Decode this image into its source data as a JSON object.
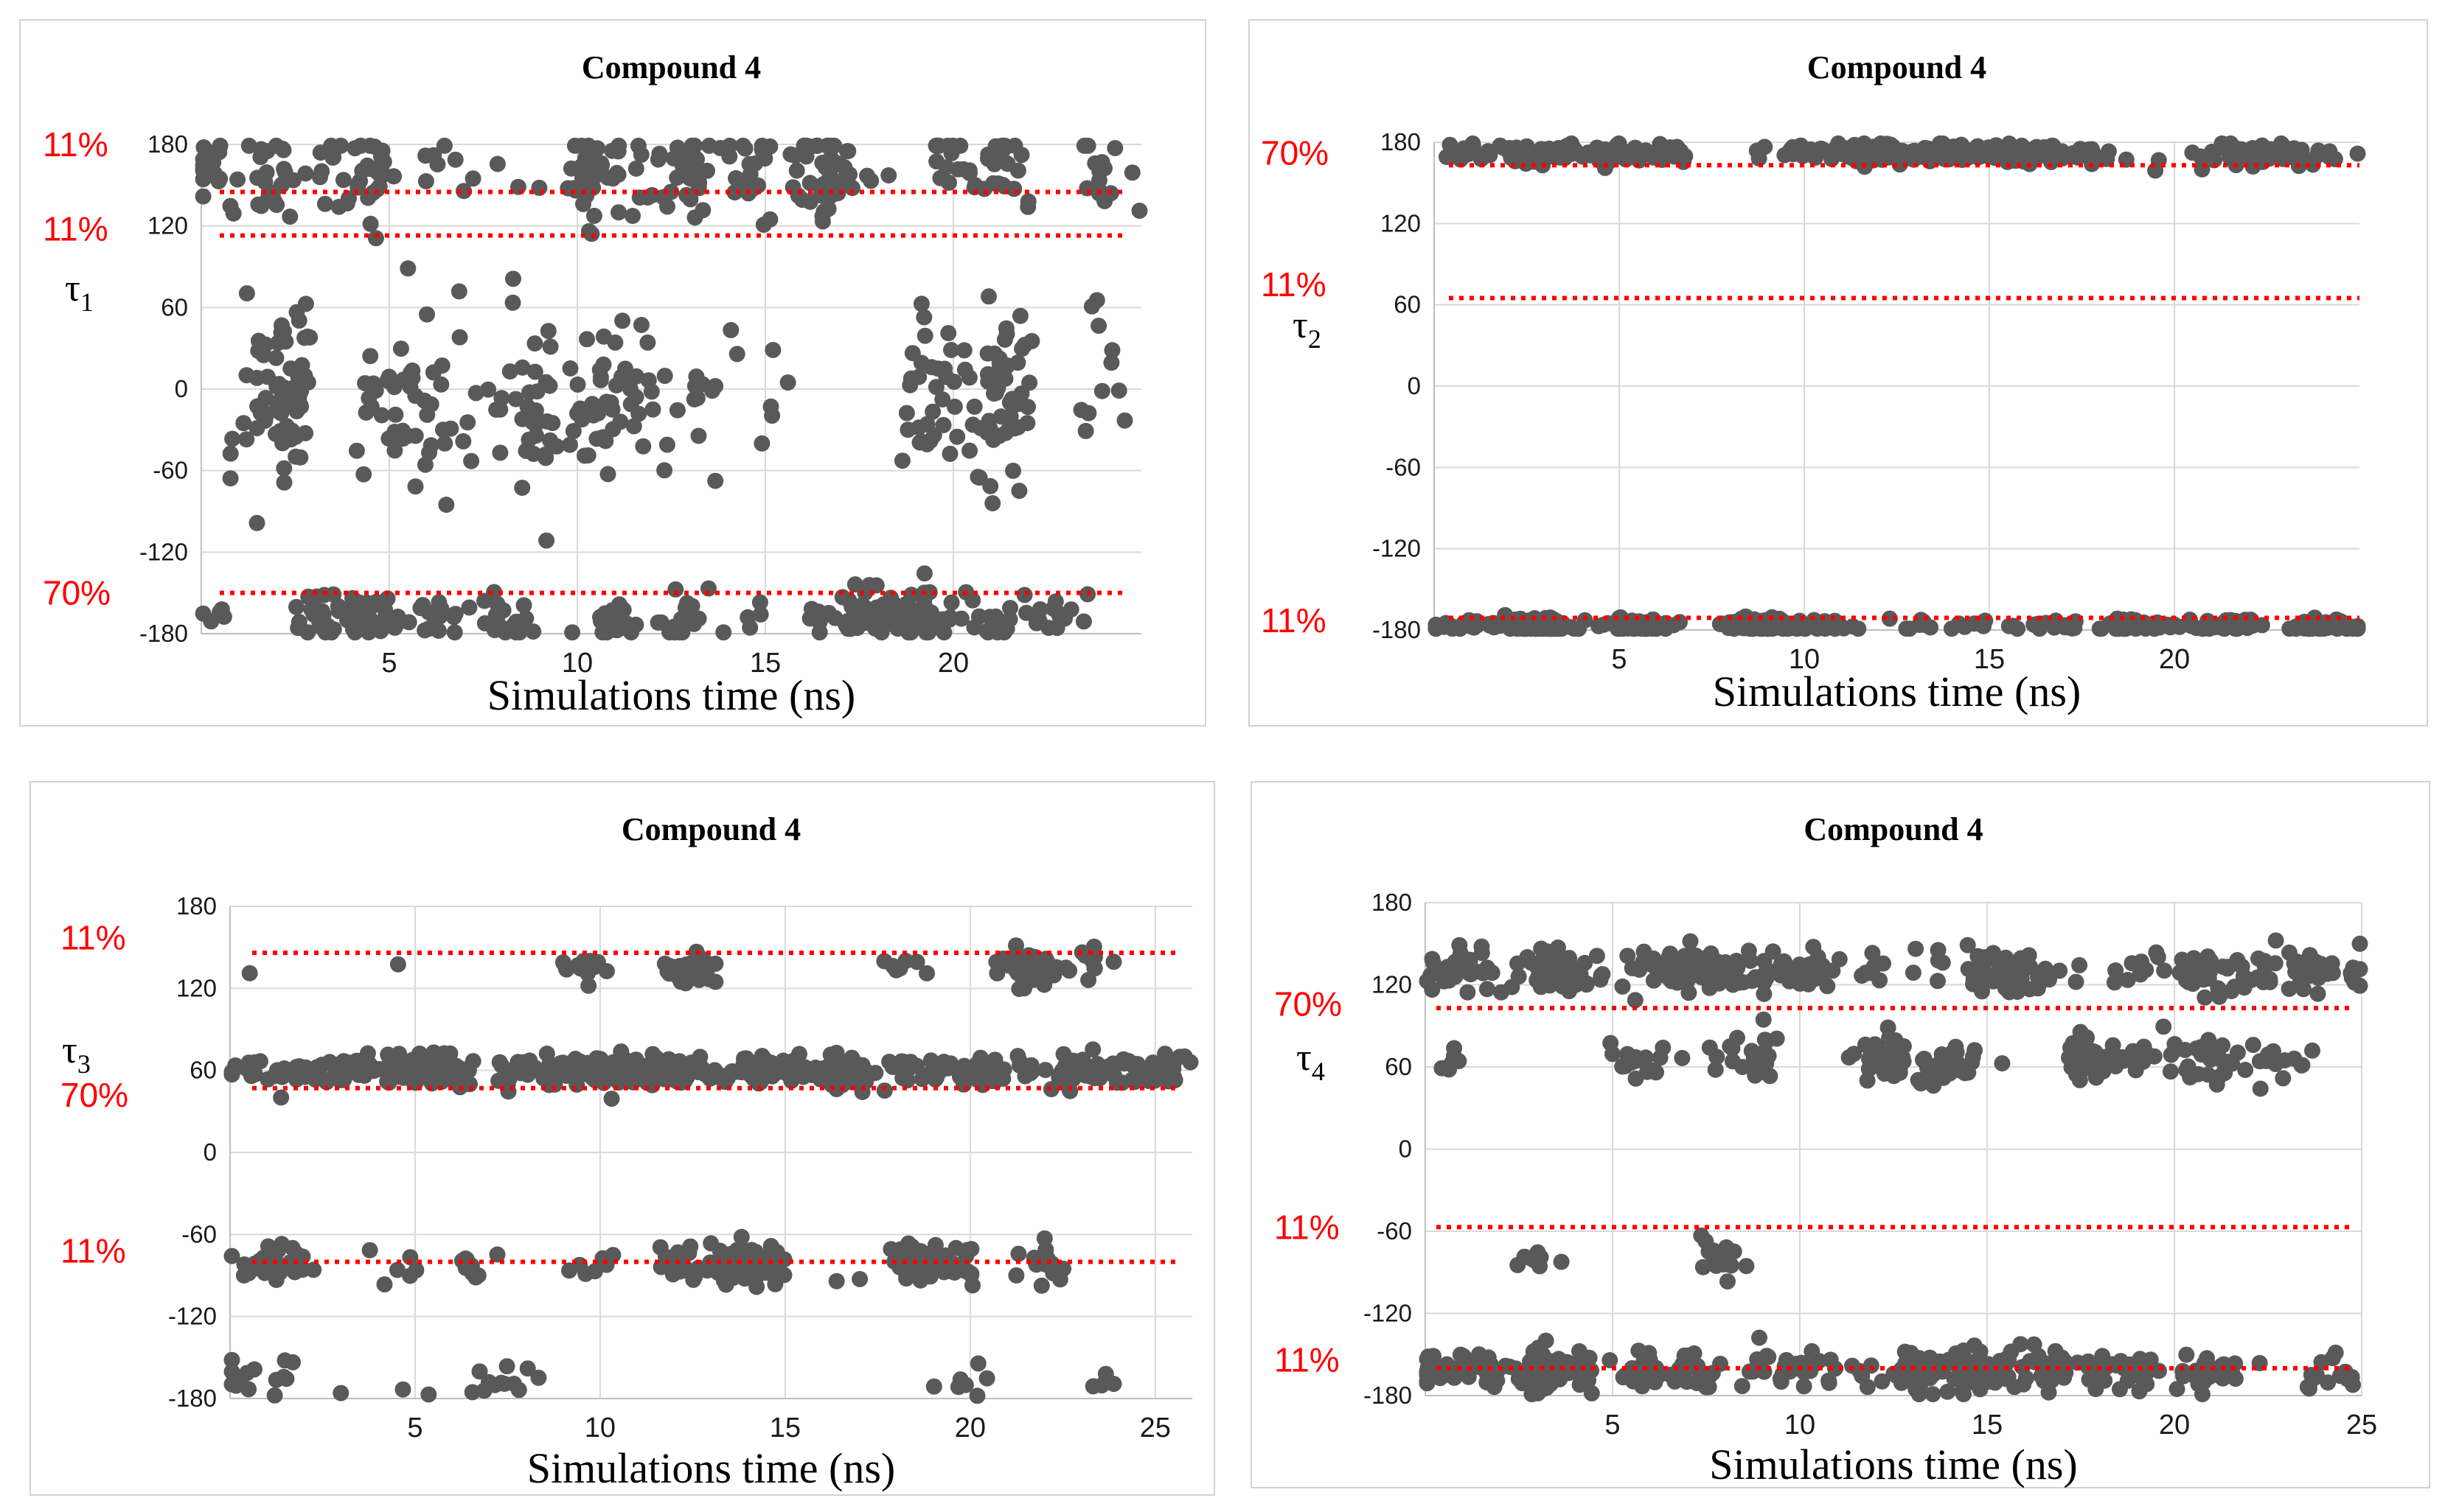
{
  "chart_data": [
    {
      "id": "tau1",
      "type": "scatter",
      "title": "Compound 4",
      "xlabel": "Simulations time (ns)",
      "ylabel": "τ",
      "ylabel_sub": "1",
      "xlim": [
        0,
        25
      ],
      "ylim": [
        -180,
        180
      ],
      "xticks": [
        5,
        10,
        15,
        20
      ],
      "yticks": [
        180,
        120,
        60,
        0,
        -60,
        -120,
        -180
      ],
      "clusters": [
        {
          "center": 160,
          "spread": 16,
          "count": 300,
          "coverage": [
            0,
            25
          ]
        },
        {
          "center": -5,
          "spread": 32,
          "count": 320,
          "coverage": [
            0,
            25
          ]
        },
        {
          "center": -168,
          "spread": 9,
          "count": 280,
          "coverage": [
            0,
            25
          ]
        }
      ],
      "reference_lines": [
        {
          "y": 145,
          "label": "11%",
          "label_y": 180
        },
        {
          "y": 113,
          "label": "11%",
          "label_y": 118
        },
        {
          "y": -150,
          "label": "70%",
          "label_y": -150
        }
      ]
    },
    {
      "id": "tau2",
      "type": "scatter",
      "title": "Compound 4",
      "xlabel": "Simulations time (ns)",
      "ylabel": "τ",
      "ylabel_sub": "2",
      "xlim": [
        0,
        25
      ],
      "ylim": [
        -180,
        180
      ],
      "xticks": [
        5,
        10,
        15,
        20
      ],
      "yticks": [
        180,
        120,
        60,
        0,
        -60,
        -120,
        -180
      ],
      "clusters": [
        {
          "center": 172,
          "spread": 4,
          "count": 420,
          "coverage": [
            0,
            25
          ]
        },
        {
          "center": -177,
          "spread": 3,
          "count": 420,
          "coverage": [
            0,
            25
          ]
        }
      ],
      "reference_lines": [
        {
          "y": 163,
          "label": "70%",
          "label_y": 172
        },
        {
          "y": 65,
          "label": "11%",
          "label_y": 75
        },
        {
          "y": -171,
          "label": "11%",
          "label_y": -173
        }
      ]
    },
    {
      "id": "tau3",
      "type": "scatter",
      "title": "Compound 4",
      "xlabel": "Simulations time (ns)",
      "ylabel": "τ",
      "ylabel_sub": "3",
      "xlim": [
        0,
        26
      ],
      "ylim": [
        -180,
        180
      ],
      "xticks": [
        5,
        10,
        15,
        20,
        25
      ],
      "yticks": [
        180,
        120,
        60,
        0,
        -60,
        -120,
        -180
      ],
      "clusters": [
        {
          "center": 135,
          "spread": 7,
          "count": 120,
          "coverage": [
            0,
            26
          ]
        },
        {
          "center": 60,
          "spread": 6,
          "count": 520,
          "coverage": [
            0,
            26
          ]
        },
        {
          "center": -82,
          "spread": 7,
          "count": 260,
          "coverage": [
            0,
            26
          ]
        },
        {
          "center": -168,
          "spread": 8,
          "count": 40,
          "coverage": [
            0,
            26
          ]
        }
      ],
      "reference_lines": [
        {
          "y": 146,
          "label": "11%",
          "label_y": 157
        },
        {
          "y": 47,
          "label": "70%",
          "label_y": 42
        },
        {
          "y": -80,
          "label": "11%",
          "label_y": -72
        }
      ]
    },
    {
      "id": "tau4",
      "type": "scatter",
      "title": "Compound 4",
      "xlabel": "Simulations time (ns)",
      "ylabel": "τ",
      "ylabel_sub": "4",
      "xlim": [
        0,
        25
      ],
      "ylim": [
        -180,
        180
      ],
      "xticks": [
        5,
        10,
        15,
        20,
        25
      ],
      "yticks": [
        180,
        120,
        60,
        0,
        -60,
        -120,
        -180
      ],
      "clusters": [
        {
          "center": 130,
          "spread": 8,
          "count": 360,
          "coverage": [
            0,
            25
          ]
        },
        {
          "center": 64,
          "spread": 8,
          "count": 220,
          "coverage": [
            0,
            25
          ]
        },
        {
          "center": -80,
          "spread": 8,
          "count": 25,
          "coverage": [
            0,
            25
          ]
        },
        {
          "center": -162,
          "spread": 8,
          "count": 420,
          "coverage": [
            0,
            25
          ]
        }
      ],
      "reference_lines": [
        {
          "y": 103,
          "label": "70%",
          "label_y": 106
        },
        {
          "y": -57,
          "label": "11%",
          "label_y": -57
        },
        {
          "y": -160,
          "label": "11%",
          "label_y": -154
        }
      ]
    }
  ]
}
